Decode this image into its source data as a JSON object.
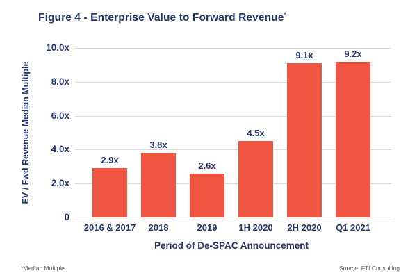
{
  "title": {
    "text": "Figure 4 - Enterprise Value to Forward Revenue",
    "superscript": "*"
  },
  "chart_data": {
    "type": "bar",
    "title": "Figure 4 - Enterprise Value to Forward Revenue*",
    "categories": [
      "2016 & 2017",
      "2018",
      "2019",
      "1H 2020",
      "2H 2020",
      "Q1 2021"
    ],
    "values": [
      2.9,
      3.8,
      2.6,
      4.5,
      9.1,
      9.2
    ],
    "value_labels": [
      "2.9x",
      "3.8x",
      "2.6x",
      "4.5x",
      "9.1x",
      "9.2x"
    ],
    "xlabel": "Period of De-SPAC Announcement",
    "ylabel": "EV / Fwd Revenue Median Multiple",
    "ylim": [
      0,
      10
    ],
    "yticks": [
      {
        "value": 0,
        "label": "0"
      },
      {
        "value": 2,
        "label": "2.0x"
      },
      {
        "value": 4,
        "label": "4.0x"
      },
      {
        "value": 6,
        "label": "6.0x"
      },
      {
        "value": 8,
        "label": "8.0x"
      },
      {
        "value": 10,
        "label": "10.0x"
      }
    ],
    "grid": true,
    "legend": false,
    "bar_color": "#F05541"
  },
  "footer": {
    "left_note": "*Median Multiple",
    "right_note": "Source: FTI Consulting"
  },
  "colors": {
    "navy_text": "#22376B",
    "bar": "#F05541",
    "gridline": "#DBDBDB",
    "note_gray": "#595959"
  }
}
